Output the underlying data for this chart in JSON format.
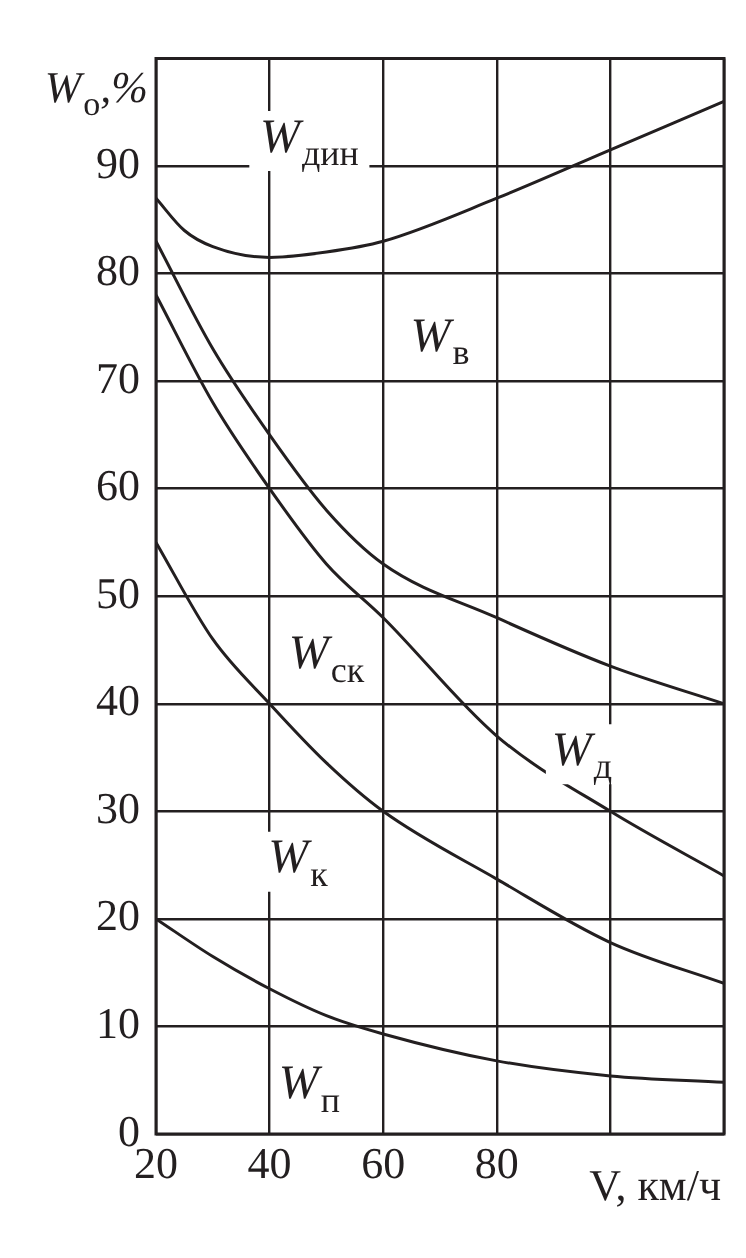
{
  "chart_data": {
    "type": "line",
    "xlabel": "V, км/ч",
    "ylabel": "W$_{о}$,%",
    "xlim": [
      20,
      120
    ],
    "xticks": [
      20,
      40,
      60,
      80,
      {
        "value": 100,
        "label": null
      },
      {
        "value": 120,
        "label": null
      }
    ],
    "ylim": [
      0,
      100
    ],
    "yticks": [
      0,
      10,
      20,
      30,
      40,
      50,
      60,
      70,
      80,
      90,
      {
        "value": 100,
        "label": null
      }
    ],
    "grid": true,
    "legend": false,
    "marker": "none",
    "line_style": "solid",
    "series": [
      {
        "color": "#231f20",
        "x": [
          20,
          25,
          30,
          40,
          50,
          60,
          80,
          100,
          120
        ],
        "values": [
          87,
          84,
          82.5,
          81.5,
          82,
          83,
          87,
          91.5,
          96
        ]
      },
      {
        "color": "#231f20",
        "x": [
          20,
          30,
          40,
          50,
          60,
          80,
          100,
          120
        ],
        "values": [
          83,
          73,
          65,
          58,
          53,
          48,
          43.5,
          40
        ]
      },
      {
        "color": "#231f20",
        "x": [
          20,
          30,
          40,
          50,
          60,
          80,
          100,
          120
        ],
        "values": [
          78,
          68,
          60,
          53,
          48,
          37,
          30,
          24
        ]
      },
      {
        "color": "#231f20",
        "x": [
          20,
          30,
          40,
          50,
          60,
          80,
          100,
          120
        ],
        "values": [
          55,
          46,
          40,
          34.5,
          30,
          23.7,
          17.8,
          14
        ]
      },
      {
        "color": "#231f20",
        "x": [
          20,
          30,
          40,
          50,
          60,
          80,
          100,
          120
        ],
        "values": [
          20,
          16.5,
          13.5,
          11,
          9.3,
          6.8,
          5.4,
          4.8
        ]
      }
    ],
    "annotations": [
      "W$_{дин}$",
      "W$_{в}$",
      "W$_{ск}$",
      "W$_{д}$",
      "W$_{к}$",
      "W$_{п}$"
    ]
  }
}
